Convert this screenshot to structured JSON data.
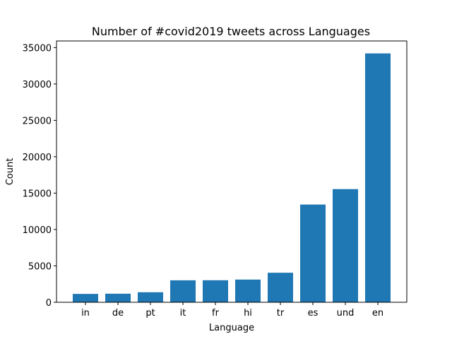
{
  "chart_data": {
    "type": "bar",
    "title": "Number of #covid2019 tweets across Languages",
    "xlabel": "Language",
    "ylabel": "Count",
    "categories": [
      "in",
      "de",
      "pt",
      "it",
      "fr",
      "hi",
      "tr",
      "es",
      "und",
      "en"
    ],
    "values": [
      1150,
      1180,
      1380,
      3020,
      3030,
      3120,
      4060,
      13430,
      15550,
      34200
    ],
    "ylim": [
      0,
      35910
    ],
    "yticks": [
      0,
      5000,
      10000,
      15000,
      20000,
      25000,
      30000,
      35000
    ],
    "ytick_labels": [
      "0",
      "5000",
      "10000",
      "15000",
      "20000",
      "25000",
      "30000",
      "35000"
    ],
    "bar_color": "#1f77b4",
    "grid": false,
    "legend": false
  }
}
